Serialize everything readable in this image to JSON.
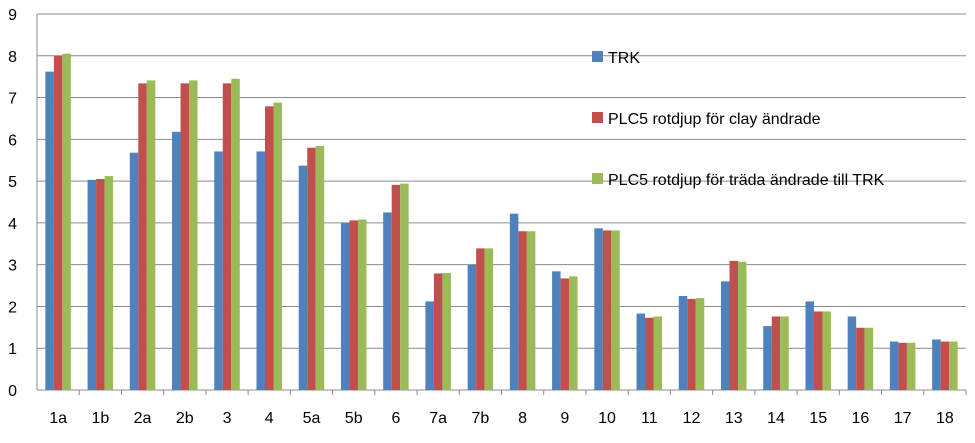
{
  "chart_data": {
    "type": "bar",
    "categories": [
      "1a",
      "1b",
      "2a",
      "2b",
      "3",
      "4",
      "5a",
      "5b",
      "6",
      "7a",
      "7b",
      "8",
      "9",
      "10",
      "11",
      "12",
      "13",
      "14",
      "15",
      "16",
      "17",
      "18"
    ],
    "series": [
      {
        "name": "TRK",
        "color": "#4f81bd",
        "values": [
          7.62,
          5.03,
          5.68,
          6.18,
          5.71,
          5.71,
          5.37,
          4.0,
          4.25,
          2.12,
          3.0,
          4.22,
          2.84,
          3.87,
          1.83,
          2.25,
          2.6,
          1.53,
          2.12,
          1.76,
          1.16,
          1.21
        ]
      },
      {
        "name": "PLC5 rotdjup för clay ändrade",
        "color": "#c0504d",
        "values": [
          8.0,
          5.05,
          7.34,
          7.34,
          7.34,
          6.79,
          5.8,
          4.06,
          4.91,
          2.79,
          3.39,
          3.8,
          2.67,
          3.82,
          1.73,
          2.18,
          3.09,
          1.76,
          1.88,
          1.49,
          1.13,
          1.16
        ]
      },
      {
        "name": "PLC5 rotdjup för träda ändrade till TRK",
        "color": "#9bbb59",
        "values": [
          8.05,
          5.12,
          7.41,
          7.41,
          7.45,
          6.88,
          5.84,
          4.08,
          4.94,
          2.8,
          3.39,
          3.8,
          2.72,
          3.82,
          1.76,
          2.2,
          3.07,
          1.76,
          1.88,
          1.49,
          1.13,
          1.16
        ]
      }
    ],
    "yticks": [
      "0",
      "1",
      "2",
      "3",
      "4",
      "5",
      "6",
      "7",
      "8",
      "9"
    ],
    "ylim": [
      0,
      9
    ],
    "grid": true,
    "legend_position": "right-inside"
  }
}
